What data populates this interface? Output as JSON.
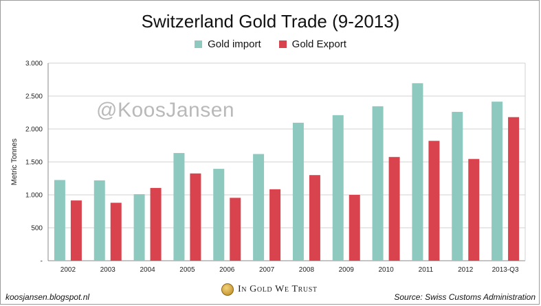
{
  "chart_data": {
    "type": "bar",
    "title": "Switzerland Gold Trade (9-2013)",
    "ylabel": "Metric Tonnes",
    "xlabel": "",
    "categories": [
      "2002",
      "2003",
      "2004",
      "2005",
      "2006",
      "2007",
      "2008",
      "2009",
      "2010",
      "2011",
      "2012",
      "2013-Q3"
    ],
    "series": [
      {
        "name": "Gold import",
        "color": "#8ec9c0",
        "values": [
          1225,
          1220,
          1010,
          1635,
          1395,
          1620,
          2095,
          2210,
          2345,
          2695,
          2260,
          2415
        ]
      },
      {
        "name": "Gold Export",
        "color": "#d9434d",
        "values": [
          915,
          880,
          1105,
          1325,
          955,
          1085,
          1300,
          1000,
          1575,
          1820,
          1545,
          2180
        ]
      }
    ],
    "ylim": [
      0,
      3000
    ],
    "yticks": [
      {
        "value": 0,
        "label": "-"
      },
      {
        "value": 500,
        "label": "500"
      },
      {
        "value": 1000,
        "label": "1.000"
      },
      {
        "value": 1500,
        "label": "1.500"
      },
      {
        "value": 2000,
        "label": "2.000"
      },
      {
        "value": 2500,
        "label": "2.500"
      },
      {
        "value": 3000,
        "label": "3.000"
      }
    ],
    "grid": true,
    "legend_position": "top-center"
  },
  "watermark": "@KoosJansen",
  "footer": {
    "left": "koosjansen.blogspot.nl",
    "brand": "In Gold We Trust",
    "right": "Source: Swiss Customs Administration"
  }
}
